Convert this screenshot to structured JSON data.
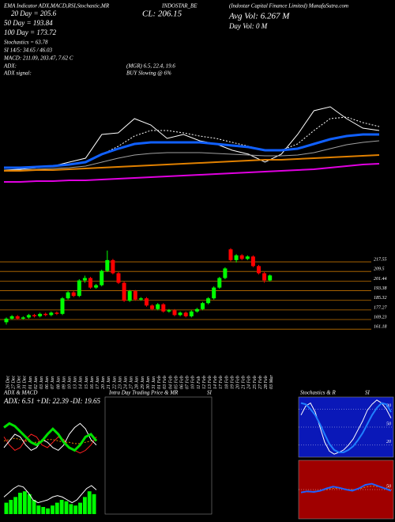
{
  "header": {
    "top_line": "EMA Indicator ADX,MACD,RSI,Stochastic,MR",
    "symbol": "INDOSTAR_BE",
    "company": "(Indostar Capital Finance Limited) MunafaSutra.com",
    "ma20": "20 Day = 205.6",
    "ma50": "50 Day = 193.84",
    "ma100": "100 Day = 173.72",
    "stoch": "Stochastics = 63.78",
    "si": "SI 14/5: 34.65 / 46.03",
    "macd": "MACD: 211.09, 203.47, 7.62 C",
    "adx_label": "ADX:",
    "adx_values": "(MGR) 6.5, 22.4, 19.6",
    "adx_signal_label": "ADX signal:",
    "adx_signal": "BUY Slowing @ 6%",
    "close": "CL: 206.15",
    "avg_vol": "Avg Vol: 6.267 M",
    "day_vol": "Day Vol: 0   M"
  },
  "chart_data": [
    {
      "type": "candlestick",
      "categories": [
        "26 Dec",
        "27 Dec",
        "30 Dec",
        "31 Dec",
        "01 Jan",
        "02 Jan",
        "03 Jan",
        "06 Jan",
        "07 Jan",
        "08 Jan",
        "09 Jan",
        "10 Jan",
        "13 Jan",
        "14 Jan",
        "15 Jan",
        "16 Jan",
        "17 Jan",
        "20 Jan",
        "21 Jan",
        "22 Jan",
        "23 Jan",
        "24 Jan",
        "27 Jan",
        "28 Jan",
        "29 Jan",
        "30 Jan",
        "31 Jan",
        "01 Feb",
        "03 Feb",
        "04 Feb",
        "05 Feb",
        "06 Feb",
        "07 Feb",
        "10 Feb",
        "11 Feb",
        "12 Feb",
        "13 Feb",
        "14 Feb",
        "17 Feb",
        "18 Feb",
        "19 Feb",
        "20 Feb",
        "21 Feb",
        "24 Feb",
        "25 Feb",
        "27 Feb",
        "28 Feb",
        "03 Mar"
      ],
      "open": [
        167,
        170,
        172,
        170,
        171,
        173,
        172,
        174,
        173,
        175,
        174,
        187,
        192,
        189,
        202,
        204,
        196,
        198,
        210,
        219,
        208,
        200,
        185,
        193,
        186,
        187,
        181,
        178,
        182,
        176,
        177,
        173,
        175,
        172,
        176,
        178,
        183,
        187,
        196,
        204,
        228,
        219,
        223,
        220,
        222,
        214,
        208,
        202
      ],
      "high": [
        171,
        173,
        173,
        172,
        174,
        174,
        175,
        175,
        176,
        176,
        188,
        193,
        193,
        203,
        206,
        205,
        199,
        211,
        227,
        220,
        209,
        201,
        194,
        194,
        188,
        188,
        182,
        183,
        183,
        178,
        178,
        176,
        176,
        177,
        179,
        184,
        188,
        197,
        205,
        213,
        229,
        224,
        224,
        223,
        223,
        215,
        209,
        207
      ],
      "low": [
        165,
        169,
        169,
        169,
        170,
        171,
        171,
        172,
        172,
        173,
        173,
        186,
        188,
        188,
        200,
        195,
        195,
        197,
        209,
        207,
        199,
        184,
        184,
        185,
        185,
        180,
        177,
        177,
        175,
        175,
        172,
        172,
        171,
        171,
        175,
        177,
        182,
        186,
        195,
        203,
        218,
        217,
        219,
        219,
        213,
        207,
        200,
        201
      ],
      "close": [
        170,
        172,
        170,
        171,
        173,
        172,
        174,
        173,
        175,
        174,
        187,
        192,
        189,
        202,
        204,
        196,
        198,
        210,
        219,
        208,
        200,
        185,
        193,
        186,
        187,
        181,
        178,
        182,
        176,
        177,
        173,
        175,
        172,
        176,
        178,
        183,
        187,
        196,
        204,
        212,
        219,
        223,
        220,
        222,
        214,
        208,
        202,
        206.15
      ],
      "up_color": "#00ff00",
      "down_color": "#ff0000",
      "ylim": [
        158,
        229.5
      ],
      "yticks": [
        217.55,
        209.5,
        201.44,
        193.38,
        185.32,
        177.27,
        169.23,
        161.18
      ],
      "grid": true,
      "grid_color": "#c07000"
    },
    {
      "type": "line",
      "ylim": [
        0,
        130
      ],
      "series": [
        {
          "color": "#ffffff",
          "width": 1,
          "values": [
            25,
            26,
            28,
            30,
            35,
            40,
            70,
            72,
            90,
            82,
            65,
            70,
            62,
            58,
            50,
            45,
            35,
            45,
            70,
            100,
            105,
            90,
            78,
            75
          ]
        },
        {
          "color": "#ffffff",
          "width": 1,
          "dash": true,
          "values": [
            28,
            28,
            29,
            30,
            32,
            35,
            45,
            55,
            68,
            75,
            75,
            72,
            68,
            65,
            60,
            55,
            50,
            50,
            58,
            75,
            90,
            92,
            85,
            80
          ]
        },
        {
          "color": "#a0a0a0",
          "width": 1,
          "values": [
            25,
            25,
            26,
            27,
            28,
            30,
            35,
            40,
            44,
            46,
            47,
            47,
            47,
            46,
            45,
            44,
            43,
            43,
            44,
            47,
            52,
            57,
            60,
            62
          ]
        },
        {
          "color": "#e08000",
          "width": 2,
          "values": [
            24,
            24,
            25,
            25,
            26,
            27,
            28,
            29,
            30,
            31,
            32,
            33,
            34,
            35,
            36,
            37,
            38,
            38,
            39,
            40,
            41,
            42,
            43,
            44
          ]
        },
        {
          "color": "#e000e0",
          "width": 2,
          "values": [
            10,
            10,
            11,
            11,
            12,
            12,
            13,
            14,
            15,
            16,
            17,
            18,
            19,
            20,
            21,
            22,
            23,
            24,
            25,
            26,
            28,
            30,
            32,
            33
          ]
        },
        {
          "color": "#1060ff",
          "width": 3,
          "values": [
            28,
            28,
            29,
            30,
            32,
            35,
            45,
            52,
            58,
            60,
            60,
            60,
            60,
            58,
            56,
            54,
            50,
            50,
            52,
            58,
            64,
            68,
            70,
            70
          ]
        }
      ]
    },
    {
      "type": "line",
      "title": "ADX  & MACD",
      "subtitle": "ADX: 6.51  +DI: 22.39  -DI: 19.65",
      "ylim": [
        0,
        50
      ],
      "series": [
        {
          "color": "#e08000",
          "width": 1,
          "dash": true,
          "values": [
            25,
            26,
            27,
            26,
            25,
            24,
            24,
            25,
            26,
            26,
            25,
            24,
            24,
            23,
            23,
            24,
            25,
            26
          ]
        },
        {
          "color": "#ff2020",
          "width": 1,
          "values": [
            28,
            22,
            18,
            20,
            26,
            30,
            28,
            22,
            20,
            24,
            28,
            26,
            20,
            18,
            16,
            18,
            22,
            28
          ]
        },
        {
          "color": "#ffffff",
          "width": 1,
          "values": [
            20,
            25,
            30,
            28,
            22,
            18,
            20,
            26,
            24,
            20,
            18,
            22,
            30,
            35,
            38,
            34,
            26,
            22
          ]
        },
        {
          "color": "#00e000",
          "width": 3,
          "values": [
            35,
            38,
            36,
            32,
            28,
            24,
            22,
            25,
            30,
            34,
            30,
            24,
            20,
            18,
            22,
            28,
            30,
            25
          ]
        }
      ]
    },
    {
      "type": "bar",
      "color": "#00ff00",
      "ylim": [
        0,
        25
      ],
      "values": [
        8,
        10,
        12,
        15,
        16,
        14,
        10,
        6,
        5,
        4,
        6,
        8,
        10,
        9,
        7,
        6,
        8,
        12,
        16,
        14
      ],
      "series": [
        {
          "color": "#ffffff",
          "width": 1,
          "values": [
            12,
            15,
            18,
            20,
            19,
            15,
            10,
            8,
            9,
            10,
            12,
            13,
            12,
            10,
            8,
            10,
            14,
            18,
            20,
            17
          ]
        }
      ]
    },
    {
      "type": "blank",
      "title": "Intra Day Trading Price  & MR",
      "subtitle": "SI"
    },
    {
      "type": "line",
      "title": "Stochastics & R",
      "subtitle": "SI",
      "background": "#0a18b8",
      "ylim": [
        0,
        100
      ],
      "yticks": [
        80,
        50,
        20
      ],
      "series": [
        {
          "color": "#ffffff",
          "width": 1,
          "values": [
            70,
            85,
            90,
            75,
            50,
            25,
            10,
            5,
            8,
            12,
            20,
            30,
            45,
            60,
            78,
            88,
            95,
            90,
            80,
            65
          ]
        },
        {
          "color": "#2080ff",
          "width": 2,
          "values": [
            90,
            88,
            80,
            70,
            55,
            38,
            22,
            12,
            8,
            8,
            12,
            18,
            28,
            40,
            55,
            70,
            82,
            90,
            88,
            75
          ]
        }
      ]
    },
    {
      "type": "line",
      "background": "#a00000",
      "ylim": [
        0,
        100
      ],
      "yticks": [
        50
      ],
      "series": [
        {
          "color": "#e08000",
          "width": 1,
          "dash": true,
          "values": [
            46,
            46,
            47,
            48,
            50,
            52,
            52,
            51,
            50,
            51,
            54,
            56,
            55,
            53,
            50
          ]
        },
        {
          "color": "#2060ff",
          "width": 2,
          "values": [
            45,
            47,
            46,
            48,
            52,
            55,
            53,
            50,
            48,
            52,
            58,
            60,
            56,
            52,
            48
          ]
        }
      ]
    }
  ]
}
